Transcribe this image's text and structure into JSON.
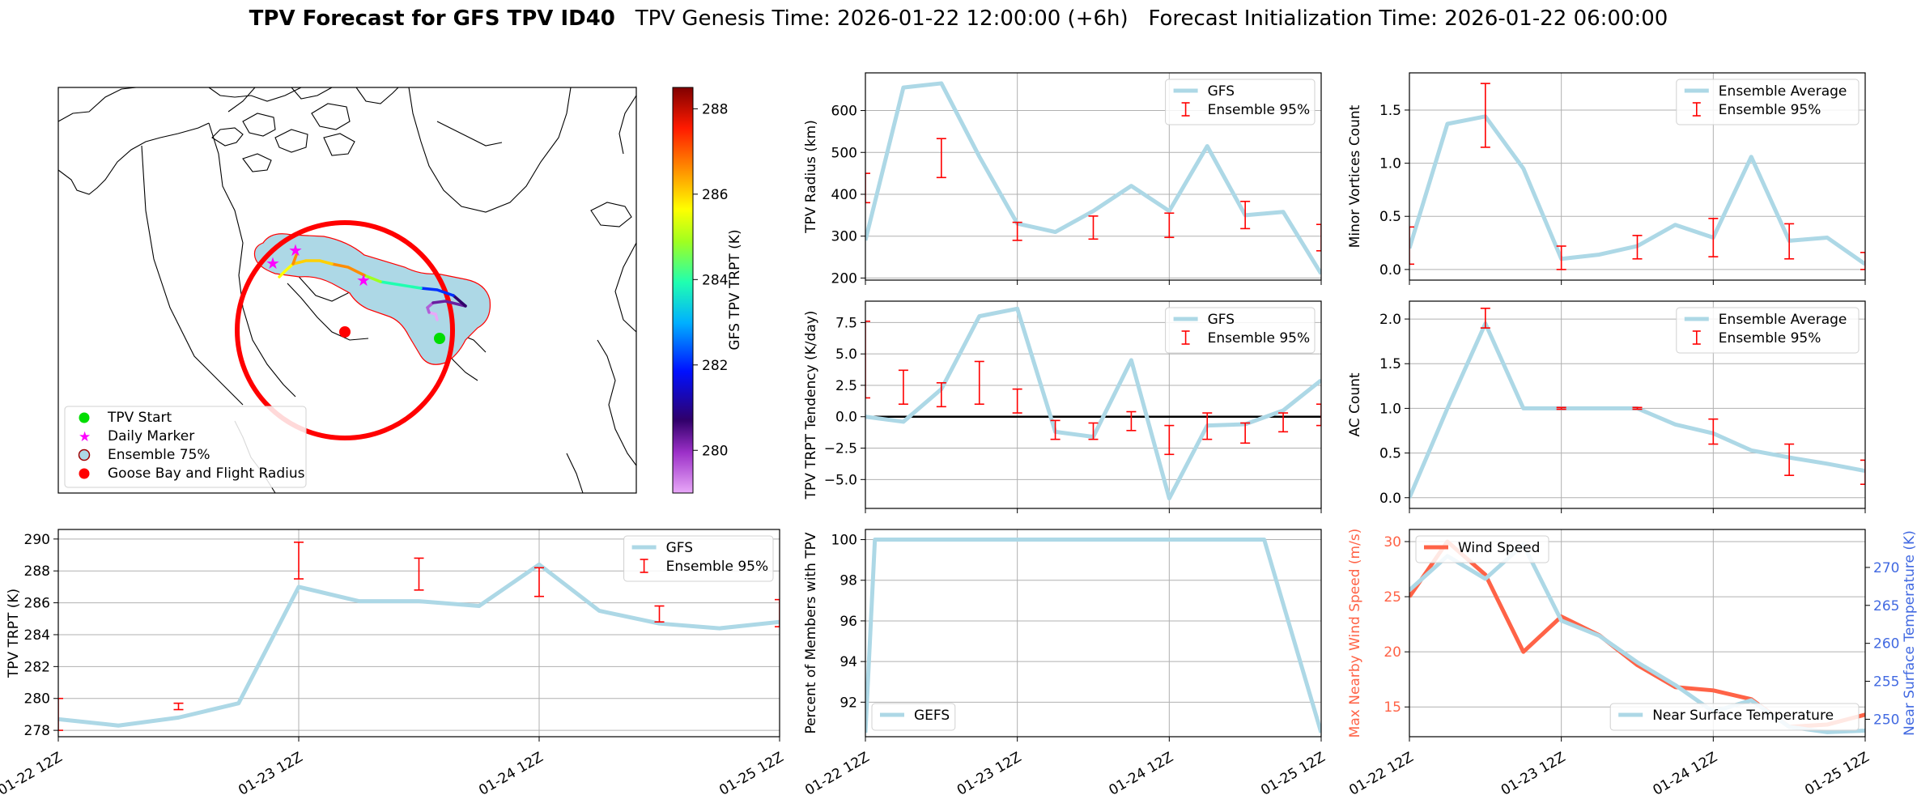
{
  "title": {
    "bold": "TPV Forecast for GFS TPV ID40",
    "genesis": "TPV Genesis Time: 2026-01-22 12:00:00 (+6h)",
    "init": "Forecast Initialization Time: 2026-01-22 06:00:00"
  },
  "colors": {
    "line": "#add8e6",
    "err": "#ff0000",
    "wind": "#ff6347",
    "temp_axis": "#4169e1",
    "flight_circle": "#ff0000",
    "ensemble_fill": "#add8e6",
    "ensemble_edge": "#ff0000"
  },
  "map": {
    "colorbar": {
      "label": "GFS TPV TRPT (K)",
      "ticks": [
        280,
        282,
        284,
        286,
        288
      ],
      "min": 279.0,
      "max": 288.5
    },
    "legend": [
      "TPV Start",
      "Daily Marker",
      "Ensemble 75%",
      "Goose Bay and Flight Radius"
    ]
  },
  "chart_data": [
    {
      "id": "radius",
      "type": "line",
      "ylabel": "TPV Radius (km)",
      "ylim": [
        195,
        690
      ],
      "yticks": [
        200,
        300,
        400,
        500,
        600
      ],
      "legend": [
        "GFS",
        "Ensemble 95%"
      ],
      "legend_pos": "upper right",
      "x": [
        0,
        1,
        2,
        3,
        4,
        5,
        6,
        7,
        8,
        9,
        10,
        11,
        12
      ],
      "values": [
        290,
        655,
        665,
        490,
        330,
        310,
        360,
        420,
        360,
        515,
        350,
        358,
        210
      ],
      "errorbars": [
        {
          "x": 0,
          "low": 380,
          "high": 450
        },
        {
          "x": 2,
          "low": 440,
          "high": 533
        },
        {
          "x": 4,
          "low": 290,
          "high": 333
        },
        {
          "x": 6,
          "low": 293,
          "high": 348
        },
        {
          "x": 8,
          "low": 297,
          "high": 355
        },
        {
          "x": 10,
          "low": 318,
          "high": 383
        },
        {
          "x": 12,
          "low": 265,
          "high": 328
        }
      ]
    },
    {
      "id": "minor",
      "type": "line",
      "ylabel": "Minor Vortices Count",
      "ylim": [
        -0.1,
        1.85
      ],
      "yticks": [
        0.0,
        0.5,
        1.0,
        1.5
      ],
      "ytick_labels": [
        "0.0",
        "0.5",
        "1.0",
        "1.5"
      ],
      "legend": [
        "Ensemble Average",
        "Ensemble 95%"
      ],
      "legend_pos": "upper right",
      "x": [
        0,
        1,
        2,
        3,
        4,
        5,
        6,
        7,
        8,
        9,
        10,
        11,
        12
      ],
      "values": [
        0.2,
        1.37,
        1.44,
        0.95,
        0.1,
        0.14,
        0.22,
        0.42,
        0.3,
        1.06,
        0.27,
        0.3,
        0.05
      ],
      "errorbars": [
        {
          "x": 0,
          "low": 0.05,
          "high": 0.4
        },
        {
          "x": 2,
          "low": 1.15,
          "high": 1.75
        },
        {
          "x": 4,
          "low": 0.0,
          "high": 0.22
        },
        {
          "x": 6,
          "low": 0.1,
          "high": 0.32
        },
        {
          "x": 8,
          "low": 0.12,
          "high": 0.48
        },
        {
          "x": 10,
          "low": 0.1,
          "high": 0.43
        },
        {
          "x": 12,
          "low": 0.0,
          "high": 0.16
        }
      ]
    },
    {
      "id": "tendency",
      "type": "line",
      "ylabel": "TPV TRPT Tendency (K/day)",
      "ylim": [
        -7.3,
        9.2
      ],
      "yticks": [
        -5.0,
        -2.5,
        0.0,
        2.5,
        5.0,
        7.5
      ],
      "ytick_labels": [
        "−5.0",
        "−2.5",
        "0.0",
        "2.5",
        "5.0",
        "7.5"
      ],
      "legend": [
        "GFS",
        "Ensemble 95%"
      ],
      "legend_pos": "upper right",
      "zero_line": true,
      "x": [
        0,
        1,
        2,
        3,
        4,
        5,
        6,
        7,
        8,
        9,
        10,
        11,
        12
      ],
      "values": [
        0.0,
        -0.4,
        2.2,
        8.0,
        8.6,
        -1.2,
        -1.6,
        4.5,
        -6.5,
        -0.7,
        -0.6,
        0.5,
        2.9
      ],
      "errorbars": [
        {
          "x": 0,
          "low": 1.5,
          "high": 7.6
        },
        {
          "x": 1,
          "low": 1.0,
          "high": 3.7
        },
        {
          "x": 2,
          "low": 0.8,
          "high": 2.7
        },
        {
          "x": 3,
          "low": 1.0,
          "high": 4.4
        },
        {
          "x": 4,
          "low": 0.3,
          "high": 2.2
        },
        {
          "x": 5,
          "low": -1.8,
          "high": -0.3
        },
        {
          "x": 6,
          "low": -1.8,
          "high": -0.5
        },
        {
          "x": 7,
          "low": -1.1,
          "high": 0.4
        },
        {
          "x": 8,
          "low": -3.0,
          "high": -0.7
        },
        {
          "x": 9,
          "low": -1.8,
          "high": 0.3
        },
        {
          "x": 10,
          "low": -2.1,
          "high": -0.5
        },
        {
          "x": 11,
          "low": -1.2,
          "high": 0.3
        },
        {
          "x": 12,
          "low": -0.7,
          "high": 1.0
        }
      ]
    },
    {
      "id": "ac",
      "type": "line",
      "ylabel": "AC Count",
      "ylim": [
        -0.12,
        2.2
      ],
      "yticks": [
        0.0,
        0.5,
        1.0,
        1.5,
        2.0
      ],
      "ytick_labels": [
        "0.0",
        "0.5",
        "1.0",
        "1.5",
        "2.0"
      ],
      "legend": [
        "Ensemble Average",
        "Ensemble 95%"
      ],
      "legend_pos": "upper right",
      "x": [
        0,
        1,
        2,
        3,
        4,
        5,
        6,
        7,
        8,
        9,
        10,
        11,
        12
      ],
      "values": [
        0.0,
        1.0,
        1.95,
        1.0,
        1.0,
        1.0,
        1.0,
        0.82,
        0.72,
        0.53,
        0.45,
        0.38,
        0.3
      ],
      "errorbars": [
        {
          "x": 2,
          "low": 1.9,
          "high": 2.12
        },
        {
          "x": 4,
          "low": 0.99,
          "high": 1.01
        },
        {
          "x": 6,
          "low": 0.99,
          "high": 1.01
        },
        {
          "x": 8,
          "low": 0.6,
          "high": 0.88
        },
        {
          "x": 10,
          "low": 0.25,
          "high": 0.6
        },
        {
          "x": 12,
          "low": 0.15,
          "high": 0.42
        }
      ]
    },
    {
      "id": "trpt",
      "type": "line",
      "ylabel": "TPV TRPT (K)",
      "ylim": [
        277.6,
        290.6
      ],
      "yticks": [
        278,
        280,
        282,
        284,
        286,
        288,
        290
      ],
      "legend": [
        "GFS",
        "Ensemble 95%"
      ],
      "legend_pos": "upper right",
      "x": [
        0,
        1,
        2,
        3,
        4,
        5,
        6,
        7,
        8,
        9,
        10,
        11,
        12
      ],
      "values": [
        278.7,
        278.3,
        278.8,
        279.7,
        287.0,
        286.1,
        286.1,
        285.8,
        288.4,
        285.5,
        284.7,
        284.4,
        284.8
      ],
      "errorbars": [
        {
          "x": 0,
          "low": 278.0,
          "high": 280.0
        },
        {
          "x": 2,
          "low": 279.3,
          "high": 279.7
        },
        {
          "x": 4,
          "low": 287.5,
          "high": 289.8
        },
        {
          "x": 6,
          "low": 286.8,
          "high": 288.8
        },
        {
          "x": 8,
          "low": 286.4,
          "high": 288.2
        },
        {
          "x": 10,
          "low": 284.8,
          "high": 285.8
        },
        {
          "x": 12,
          "low": 284.5,
          "high": 286.2
        }
      ]
    },
    {
      "id": "percent",
      "type": "line",
      "ylabel": "Percent of Members with TPV",
      "ylim": [
        90.3,
        100.5
      ],
      "yticks": [
        92,
        94,
        96,
        98,
        100
      ],
      "legend": [
        "GEFS"
      ],
      "legend_pos": "lower left",
      "x": [
        0,
        0.25,
        10.5,
        12
      ],
      "values": [
        90.5,
        100,
        100,
        90.5
      ]
    },
    {
      "id": "wind",
      "type": "line",
      "dual_axis": true,
      "ylabel": "Max Nearby Wind Speed (m/s)",
      "ylim": [
        12.3,
        31.1
      ],
      "yticks": [
        15,
        20,
        25,
        30
      ],
      "ylabel2": "Near Surface Temperature (K)",
      "ylim2": [
        247.7,
        275.0
      ],
      "yticks2": [
        250,
        255,
        260,
        265,
        270
      ],
      "legend": [
        "Wind Speed"
      ],
      "legend2": [
        "Near Surface Temperature"
      ],
      "x": [
        0,
        1,
        2,
        3,
        4,
        5,
        6,
        7,
        8,
        9,
        10,
        11,
        12
      ],
      "series": [
        {
          "name": "Wind Speed",
          "axis": "left",
          "values": [
            25.0,
            30.0,
            27.0,
            20.0,
            23.2,
            21.5,
            18.8,
            16.8,
            16.5,
            15.7,
            13.2,
            13.4,
            14.3
          ]
        },
        {
          "name": "Near Surface Temperature",
          "axis": "right",
          "values": [
            267.0,
            271.5,
            268.5,
            273.0,
            263.0,
            261.0,
            257.5,
            254.5,
            251.0,
            252.5,
            249.0,
            248.3,
            248.5
          ]
        }
      ]
    }
  ],
  "x_axis": {
    "range": [
      0,
      12
    ],
    "ticks": [
      0,
      4,
      8,
      12
    ],
    "labels": [
      "01-22 12Z",
      "01-23 12Z",
      "01-24 12Z",
      "01-25 12Z"
    ]
  }
}
